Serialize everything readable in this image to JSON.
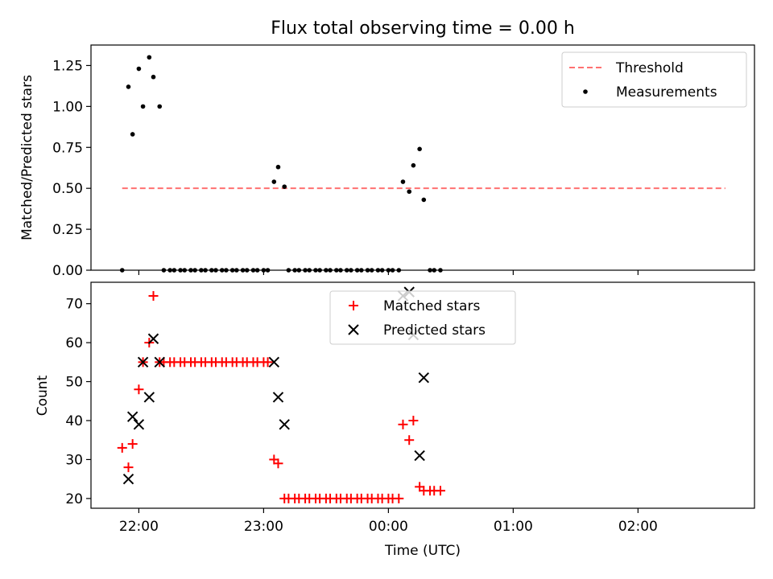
{
  "title": "Flux total observing time = 0.00 h",
  "xlabel": "Time (UTC)",
  "x_tick_labels": [
    "22:00",
    "23:00",
    "00:00",
    "01:00",
    "02:00"
  ],
  "chart_data": [
    {
      "type": "scatter",
      "ylabel": "Matched/Predicted stars",
      "ylim": [
        0,
        1.375
      ],
      "yticks": [
        "0.00",
        "0.25",
        "0.50",
        "0.75",
        "1.00",
        "1.25"
      ],
      "legend_position": "top-right",
      "threshold": {
        "name": "Threshold",
        "value": 0.5,
        "x_range": [
          "21:52",
          "02:42"
        ],
        "color": "#ff7070",
        "style": "dashed"
      },
      "series": [
        {
          "name": "Measurements",
          "color": "#000000",
          "marker": "dot",
          "points": [
            [
              "21:52",
              0.0
            ],
            [
              "21:55",
              1.12
            ],
            [
              "21:57",
              0.83
            ],
            [
              "22:00",
              1.23
            ],
            [
              "22:02",
              1.0
            ],
            [
              "22:05",
              1.3
            ],
            [
              "22:07",
              1.18
            ],
            [
              "22:10",
              1.0
            ],
            [
              "22:12",
              0.0
            ],
            [
              "22:15",
              0.0
            ],
            [
              "22:17",
              0.0
            ],
            [
              "22:20",
              0.0
            ],
            [
              "22:22",
              0.0
            ],
            [
              "22:25",
              0.0
            ],
            [
              "22:27",
              0.0
            ],
            [
              "22:30",
              0.0
            ],
            [
              "22:32",
              0.0
            ],
            [
              "22:35",
              0.0
            ],
            [
              "22:37",
              0.0
            ],
            [
              "22:40",
              0.0
            ],
            [
              "22:42",
              0.0
            ],
            [
              "22:45",
              0.0
            ],
            [
              "22:47",
              0.0
            ],
            [
              "22:50",
              0.0
            ],
            [
              "22:52",
              0.0
            ],
            [
              "22:55",
              0.0
            ],
            [
              "22:57",
              0.0
            ],
            [
              "23:00",
              0.0
            ],
            [
              "23:02",
              0.0
            ],
            [
              "23:05",
              0.54
            ],
            [
              "23:07",
              0.63
            ],
            [
              "23:10",
              0.51
            ],
            [
              "23:12",
              0.0
            ],
            [
              "23:15",
              0.0
            ],
            [
              "23:17",
              0.0
            ],
            [
              "23:20",
              0.0
            ],
            [
              "23:22",
              0.0
            ],
            [
              "23:25",
              0.0
            ],
            [
              "23:27",
              0.0
            ],
            [
              "23:30",
              0.0
            ],
            [
              "23:32",
              0.0
            ],
            [
              "23:35",
              0.0
            ],
            [
              "23:37",
              0.0
            ],
            [
              "23:40",
              0.0
            ],
            [
              "23:42",
              0.0
            ],
            [
              "23:45",
              0.0
            ],
            [
              "23:47",
              0.0
            ],
            [
              "23:50",
              0.0
            ],
            [
              "23:52",
              0.0
            ],
            [
              "23:55",
              0.0
            ],
            [
              "23:57",
              0.0
            ],
            [
              "00:00",
              0.0
            ],
            [
              "00:02",
              0.0
            ],
            [
              "00:05",
              0.0
            ],
            [
              "00:07",
              0.54
            ],
            [
              "00:10",
              0.48
            ],
            [
              "00:12",
              0.64
            ],
            [
              "00:15",
              0.74
            ],
            [
              "00:17",
              0.43
            ],
            [
              "00:20",
              0.0
            ],
            [
              "00:22",
              0.0
            ],
            [
              "00:25",
              0.0
            ]
          ]
        }
      ]
    },
    {
      "type": "scatter",
      "ylabel": "Count",
      "ylim": [
        17.5,
        75.5
      ],
      "yticks": [
        "20",
        "30",
        "40",
        "50",
        "60",
        "70"
      ],
      "legend_position": "top-center",
      "series": [
        {
          "name": "Matched stars",
          "color": "#ff0000",
          "marker": "plus",
          "points": [
            [
              "21:52",
              33
            ],
            [
              "21:55",
              28
            ],
            [
              "21:57",
              34
            ],
            [
              "22:00",
              48
            ],
            [
              "22:02",
              55
            ],
            [
              "22:05",
              60
            ],
            [
              "22:07",
              72
            ],
            [
              "22:10",
              55
            ],
            [
              "22:12",
              55
            ],
            [
              "22:15",
              55
            ],
            [
              "22:17",
              55
            ],
            [
              "22:20",
              55
            ],
            [
              "22:22",
              55
            ],
            [
              "22:25",
              55
            ],
            [
              "22:27",
              55
            ],
            [
              "22:30",
              55
            ],
            [
              "22:32",
              55
            ],
            [
              "22:35",
              55
            ],
            [
              "22:37",
              55
            ],
            [
              "22:40",
              55
            ],
            [
              "22:42",
              55
            ],
            [
              "22:45",
              55
            ],
            [
              "22:47",
              55
            ],
            [
              "22:50",
              55
            ],
            [
              "22:52",
              55
            ],
            [
              "22:55",
              55
            ],
            [
              "22:57",
              55
            ],
            [
              "23:00",
              55
            ],
            [
              "23:02",
              55
            ],
            [
              "23:05",
              30
            ],
            [
              "23:07",
              29
            ],
            [
              "23:10",
              20
            ],
            [
              "23:12",
              20
            ],
            [
              "23:15",
              20
            ],
            [
              "23:17",
              20
            ],
            [
              "23:20",
              20
            ],
            [
              "23:22",
              20
            ],
            [
              "23:25",
              20
            ],
            [
              "23:27",
              20
            ],
            [
              "23:30",
              20
            ],
            [
              "23:32",
              20
            ],
            [
              "23:35",
              20
            ],
            [
              "23:37",
              20
            ],
            [
              "23:40",
              20
            ],
            [
              "23:42",
              20
            ],
            [
              "23:45",
              20
            ],
            [
              "23:47",
              20
            ],
            [
              "23:50",
              20
            ],
            [
              "23:52",
              20
            ],
            [
              "23:55",
              20
            ],
            [
              "23:57",
              20
            ],
            [
              "00:00",
              20
            ],
            [
              "00:02",
              20
            ],
            [
              "00:05",
              20
            ],
            [
              "00:07",
              39
            ],
            [
              "00:10",
              35
            ],
            [
              "00:12",
              40
            ],
            [
              "00:15",
              23
            ],
            [
              "00:17",
              22
            ],
            [
              "00:20",
              22
            ],
            [
              "00:22",
              22
            ],
            [
              "00:25",
              22
            ]
          ]
        },
        {
          "name": "Predicted stars",
          "color": "#000000",
          "marker": "x",
          "points": [
            [
              "21:55",
              25
            ],
            [
              "21:57",
              41
            ],
            [
              "22:00",
              39
            ],
            [
              "22:02",
              55
            ],
            [
              "22:05",
              46
            ],
            [
              "22:07",
              61
            ],
            [
              "22:10",
              55
            ],
            [
              "23:05",
              55
            ],
            [
              "23:07",
              46
            ],
            [
              "23:10",
              39
            ],
            [
              "00:07",
              72
            ],
            [
              "00:10",
              73
            ],
            [
              "00:12",
              62
            ],
            [
              "00:15",
              31
            ],
            [
              "00:17",
              51
            ]
          ]
        }
      ]
    }
  ]
}
